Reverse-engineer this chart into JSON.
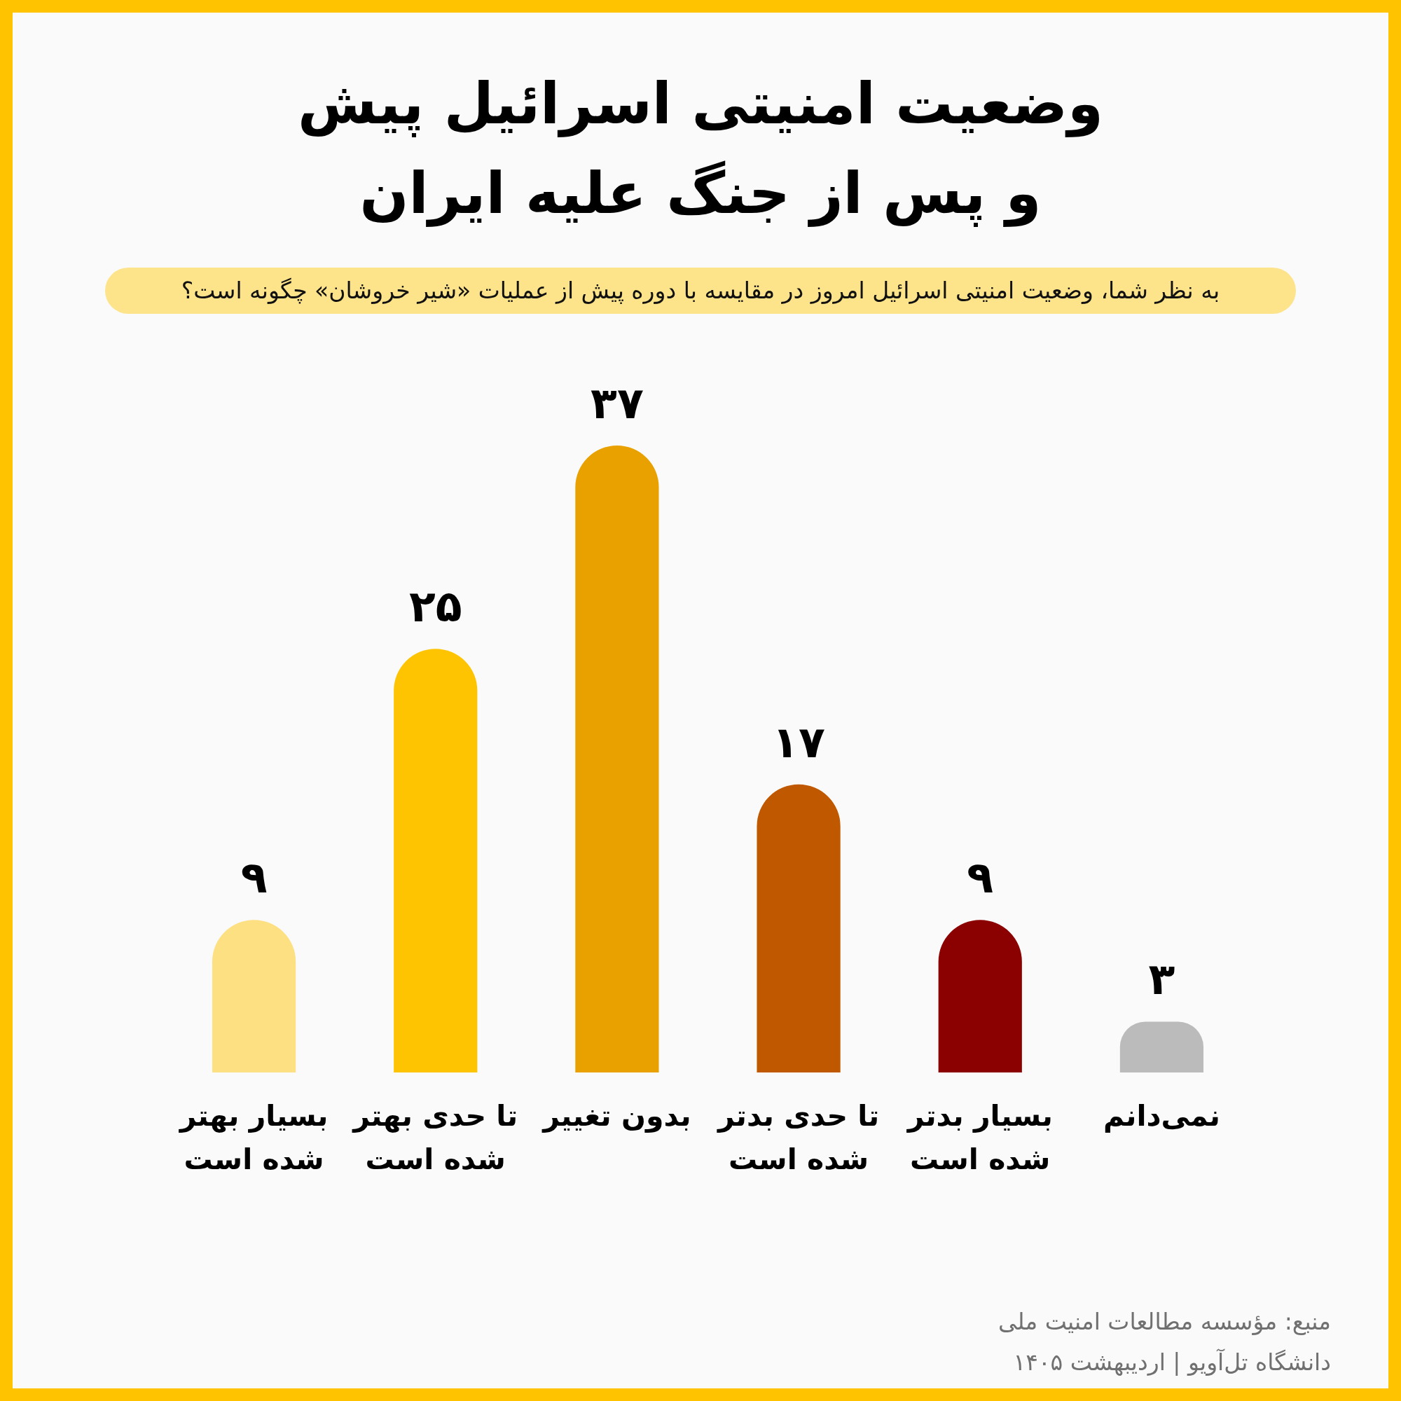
{
  "chart_data": {
    "type": "bar",
    "title": "وضعیت امنیتی اسرائیل پیش و پس از جنگ علیه ایران",
    "subtitle": "به نظر شما، وضعیت امنیتی اسرائیل امروز در مقایسه با دوره پیش از عملیات «شیر خروشان» چگونه است؟",
    "categories": [
      "بسیار بهتر شده است",
      "تا حدی بهتر شده است",
      "بدون تغییر",
      "تا حدی بدتر شده است",
      "بسیار بدتر شده است",
      "نمی‌دانم"
    ],
    "values": [
      9,
      25,
      37,
      17,
      9,
      3
    ],
    "colors": [
      "#fde082",
      "#fec402",
      "#e9a100",
      "#c05800",
      "#8b0000",
      "#bbbbbb"
    ],
    "value_labels": [
      "۹",
      "۲۵",
      "۳۷",
      "۱۷",
      "۹",
      "۳"
    ],
    "annotations": [
      "منبع: مؤسسه مطالعات امنیت ملی",
      "دانشگاه تل‌آویو | اردیبهشت ۱۴۰۵"
    ]
  }
}
